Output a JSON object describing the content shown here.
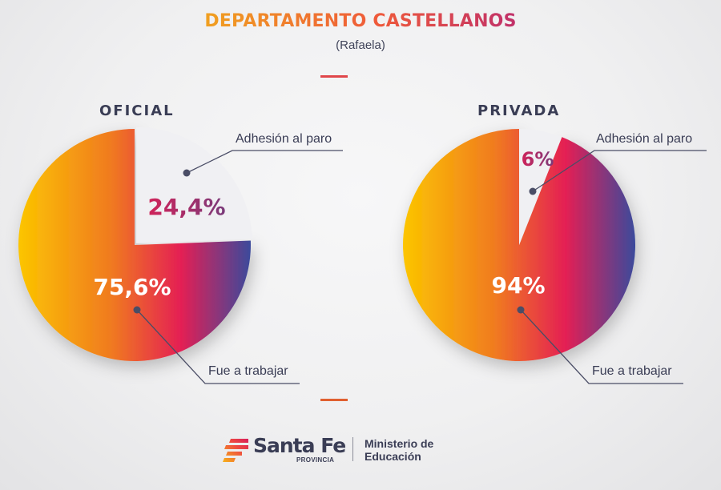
{
  "header": {
    "title": "DEPARTAMENTO CASTELLANOS",
    "subtitle": "(Rafaela)"
  },
  "chart_data": [
    {
      "type": "pie",
      "title": "OFICIAL",
      "slices": [
        {
          "label": "Adhesión al paro",
          "value": 24.4,
          "display": "24,4%",
          "color": "#f0f0f3"
        },
        {
          "label": "Fue a trabajar",
          "value": 75.6,
          "display": "75,6%",
          "color": "gradient"
        }
      ],
      "start_angle_deg": 0,
      "direction": "clockwise"
    },
    {
      "type": "pie",
      "title": "PRIVADA",
      "slices": [
        {
          "label": "Adhesión al paro",
          "value": 6,
          "display": "6%",
          "color": "#f0f0f3"
        },
        {
          "label": "Fue a trabajar",
          "value": 94,
          "display": "94%",
          "color": "gradient"
        }
      ],
      "start_angle_deg": 0,
      "direction": "clockwise"
    }
  ],
  "colors": {
    "gradient_stops": [
      "#fcc500",
      "#f07a20",
      "#e41f54",
      "#3b4a9c"
    ],
    "small_slice": "#f0f0f3",
    "small_label": "#b8275e",
    "leader": "#4a4d66",
    "text_dark": "#3a3d55"
  },
  "footer": {
    "logo_name": "Santa Fe",
    "logo_sub": "PROVINCIA",
    "ministry_line1": "Ministerio de",
    "ministry_line2": "Educación"
  }
}
